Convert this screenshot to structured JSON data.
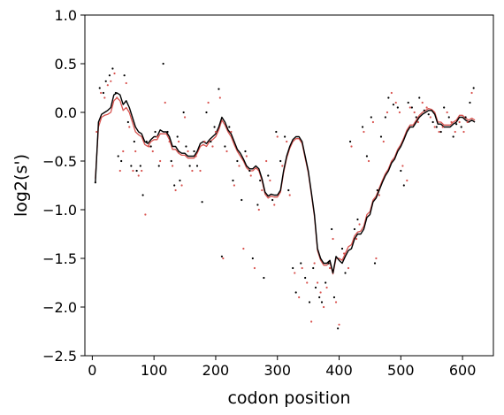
{
  "chart_data": {
    "type": "line",
    "title": "",
    "xlabel": "codon position",
    "ylabel": "log2(s')",
    "xlim": [
      -12,
      650
    ],
    "ylim": [
      -2.5,
      1.0
    ],
    "xticks": [
      0,
      100,
      200,
      300,
      400,
      500,
      600
    ],
    "yticks": [
      -2.5,
      -2.0,
      -1.5,
      -1.0,
      -0.5,
      0.0,
      0.5,
      1.0
    ],
    "grid": false,
    "colors": {
      "black_series": "#000000",
      "red_series": "#d9534f"
    },
    "series": [
      {
        "style": "line",
        "color": "#000000",
        "x": [
          5,
          10,
          15,
          20,
          25,
          30,
          35,
          40,
          45,
          50,
          55,
          60,
          65,
          70,
          75,
          80,
          85,
          90,
          95,
          100,
          105,
          110,
          115,
          120,
          125,
          130,
          135,
          140,
          145,
          150,
          155,
          160,
          165,
          170,
          175,
          180,
          185,
          190,
          195,
          200,
          205,
          210,
          215,
          220,
          225,
          230,
          235,
          240,
          245,
          250,
          255,
          260,
          265,
          270,
          275,
          280,
          285,
          290,
          295,
          300,
          305,
          310,
          315,
          320,
          325,
          330,
          335,
          340,
          345,
          350,
          355,
          360,
          365,
          370,
          375,
          380,
          385,
          390,
          395,
          400,
          405,
          410,
          415,
          420,
          425,
          430,
          435,
          440,
          445,
          450,
          455,
          460,
          465,
          470,
          475,
          480,
          485,
          490,
          495,
          500,
          505,
          510,
          515,
          520,
          525,
          530,
          535,
          540,
          545,
          550,
          555,
          560,
          565,
          570,
          575,
          580,
          585,
          590,
          595,
          600,
          605,
          610,
          615,
          620
        ],
        "y": [
          -0.72,
          -0.1,
          -0.02,
          0.0,
          0.02,
          0.05,
          0.18,
          0.2,
          0.18,
          0.08,
          0.12,
          0.05,
          -0.05,
          -0.15,
          -0.2,
          -0.22,
          -0.3,
          -0.32,
          -0.28,
          -0.25,
          -0.25,
          -0.18,
          -0.2,
          -0.2,
          -0.25,
          -0.35,
          -0.35,
          -0.4,
          -0.42,
          -0.42,
          -0.45,
          -0.45,
          -0.45,
          -0.4,
          -0.32,
          -0.3,
          -0.32,
          -0.28,
          -0.25,
          -0.22,
          -0.15,
          -0.05,
          -0.1,
          -0.18,
          -0.22,
          -0.3,
          -0.38,
          -0.42,
          -0.48,
          -0.55,
          -0.58,
          -0.58,
          -0.55,
          -0.58,
          -0.68,
          -0.82,
          -0.86,
          -0.84,
          -0.85,
          -0.85,
          -0.8,
          -0.6,
          -0.45,
          -0.35,
          -0.28,
          -0.25,
          -0.25,
          -0.3,
          -0.45,
          -0.6,
          -0.82,
          -1.05,
          -1.4,
          -1.5,
          -1.55,
          -1.55,
          -1.52,
          -1.65,
          -1.48,
          -1.52,
          -1.55,
          -1.48,
          -1.42,
          -1.4,
          -1.3,
          -1.25,
          -1.25,
          -1.2,
          -1.08,
          -1.05,
          -0.92,
          -0.88,
          -0.8,
          -0.72,
          -0.65,
          -0.6,
          -0.52,
          -0.48,
          -0.4,
          -0.35,
          -0.28,
          -0.2,
          -0.15,
          -0.15,
          -0.1,
          -0.05,
          -0.02,
          0.0,
          0.02,
          0.02,
          -0.02,
          -0.12,
          -0.12,
          -0.15,
          -0.15,
          -0.15,
          -0.12,
          -0.1,
          -0.05,
          -0.05,
          -0.08,
          -0.1,
          -0.08,
          -0.1
        ]
      },
      {
        "style": "line",
        "color": "#d9534f",
        "x": [
          5,
          10,
          15,
          20,
          25,
          30,
          35,
          40,
          45,
          50,
          55,
          60,
          65,
          70,
          75,
          80,
          85,
          90,
          95,
          100,
          105,
          110,
          115,
          120,
          125,
          130,
          135,
          140,
          145,
          150,
          155,
          160,
          165,
          170,
          175,
          180,
          185,
          190,
          195,
          200,
          205,
          210,
          215,
          220,
          225,
          230,
          235,
          240,
          245,
          250,
          255,
          260,
          265,
          270,
          275,
          280,
          285,
          290,
          295,
          300,
          305,
          310,
          315,
          320,
          325,
          330,
          335,
          340,
          345,
          350,
          355,
          360,
          365,
          370,
          375,
          380,
          385,
          390,
          395,
          400,
          405,
          410,
          415,
          420,
          425,
          430,
          435,
          440,
          445,
          450,
          455,
          460,
          465,
          470,
          475,
          480,
          485,
          490,
          495,
          500,
          505,
          510,
          515,
          520,
          525,
          530,
          535,
          540,
          545,
          550,
          555,
          560,
          565,
          570,
          575,
          580,
          585,
          590,
          595,
          600,
          605,
          610,
          615,
          620
        ],
        "y": [
          -0.68,
          -0.15,
          -0.05,
          -0.03,
          -0.02,
          0.0,
          0.12,
          0.15,
          0.12,
          0.02,
          0.05,
          0.0,
          -0.1,
          -0.2,
          -0.23,
          -0.25,
          -0.33,
          -0.35,
          -0.3,
          -0.28,
          -0.28,
          -0.22,
          -0.22,
          -0.22,
          -0.28,
          -0.38,
          -0.38,
          -0.42,
          -0.44,
          -0.44,
          -0.47,
          -0.47,
          -0.47,
          -0.42,
          -0.35,
          -0.33,
          -0.35,
          -0.3,
          -0.28,
          -0.25,
          -0.18,
          -0.08,
          -0.13,
          -0.2,
          -0.25,
          -0.33,
          -0.4,
          -0.45,
          -0.5,
          -0.57,
          -0.6,
          -0.6,
          -0.57,
          -0.6,
          -0.7,
          -0.84,
          -0.88,
          -0.86,
          -0.87,
          -0.87,
          -0.82,
          -0.62,
          -0.47,
          -0.37,
          -0.3,
          -0.27,
          -0.27,
          -0.32,
          -0.47,
          -0.62,
          -0.84,
          -1.07,
          -1.42,
          -1.52,
          -1.57,
          -1.57,
          -1.54,
          -1.66,
          -1.5,
          -1.5,
          -1.52,
          -1.45,
          -1.38,
          -1.36,
          -1.27,
          -1.23,
          -1.22,
          -1.17,
          -1.05,
          -1.02,
          -0.9,
          -0.86,
          -0.78,
          -0.7,
          -0.63,
          -0.58,
          -0.5,
          -0.46,
          -0.38,
          -0.33,
          -0.26,
          -0.18,
          -0.13,
          -0.13,
          -0.08,
          -0.03,
          0.0,
          0.02,
          0.04,
          0.03,
          0.0,
          -0.1,
          -0.1,
          -0.13,
          -0.13,
          -0.13,
          -0.1,
          -0.08,
          -0.03,
          -0.03,
          -0.06,
          -0.08,
          -0.06,
          -0.08
        ]
      },
      {
        "style": "scatter",
        "color": "#000000",
        "x": [
          5,
          12,
          18,
          22,
          28,
          33,
          38,
          42,
          47,
          52,
          58,
          63,
          68,
          72,
          78,
          82,
          88,
          95,
          102,
          108,
          115,
          122,
          128,
          133,
          138,
          142,
          148,
          152,
          158,
          165,
          170,
          178,
          185,
          192,
          198,
          205,
          210,
          215,
          222,
          228,
          235,
          242,
          248,
          255,
          260,
          268,
          272,
          278,
          285,
          292,
          298,
          305,
          312,
          318,
          325,
          330,
          338,
          345,
          352,
          358,
          362,
          368,
          372,
          378,
          383,
          388,
          392,
          398,
          405,
          410,
          418,
          425,
          430,
          438,
          445,
          452,
          458,
          462,
          468,
          475,
          480,
          488,
          495,
          500,
          505,
          512,
          518,
          525,
          530,
          538,
          545,
          552,
          558,
          565,
          570,
          578,
          585,
          590,
          598,
          605,
          612,
          618
        ],
        "y": [
          -0.72,
          0.25,
          0.2,
          0.32,
          0.38,
          0.45,
          0.2,
          -0.45,
          -0.5,
          0.38,
          -0.1,
          -0.55,
          -0.3,
          -0.6,
          -0.55,
          -0.85,
          -0.3,
          -0.35,
          -0.2,
          -0.55,
          0.5,
          -0.2,
          -0.5,
          -0.75,
          -0.25,
          -0.7,
          0.0,
          -0.35,
          -0.55,
          -0.4,
          -0.55,
          -0.92,
          0.0,
          -0.3,
          -0.15,
          0.24,
          -1.48,
          -0.35,
          -0.15,
          -0.7,
          -0.5,
          -0.9,
          -0.4,
          -0.6,
          -1.5,
          -0.95,
          -0.7,
          -1.7,
          -0.65,
          -0.9,
          -0.2,
          -0.5,
          -0.25,
          -0.8,
          -1.6,
          -1.85,
          -1.55,
          -1.7,
          -1.95,
          -1.6,
          -1.8,
          -1.9,
          -1.95,
          -1.75,
          -1.55,
          -1.2,
          -1.9,
          -2.22,
          -1.4,
          -1.65,
          -0.3,
          -1.2,
          -1.1,
          -0.15,
          -0.45,
          -0.05,
          -1.55,
          -0.8,
          -0.25,
          -0.05,
          0.15,
          0.08,
          0.05,
          -0.6,
          -0.75,
          0.1,
          0.05,
          -0.05,
          0.15,
          0.02,
          -0.02,
          -0.1,
          -0.15,
          -0.2,
          0.05,
          -0.05,
          -0.25,
          -0.12,
          -0.15,
          -0.05,
          0.1,
          0.25
        ]
      },
      {
        "style": "scatter",
        "color": "#d9534f",
        "x": [
          7,
          14,
          20,
          25,
          30,
          36,
          40,
          45,
          50,
          55,
          60,
          66,
          70,
          75,
          80,
          86,
          92,
          98,
          105,
          110,
          118,
          125,
          130,
          135,
          140,
          145,
          150,
          155,
          162,
          168,
          175,
          182,
          188,
          195,
          200,
          207,
          212,
          218,
          225,
          230,
          238,
          245,
          250,
          257,
          263,
          270,
          275,
          282,
          288,
          295,
          300,
          308,
          315,
          320,
          328,
          335,
          340,
          348,
          355,
          360,
          365,
          370,
          375,
          380,
          385,
          390,
          395,
          400,
          408,
          415,
          420,
          428,
          433,
          440,
          448,
          455,
          460,
          465,
          472,
          478,
          485,
          492,
          498,
          503,
          510,
          515,
          522,
          528,
          535,
          542,
          548,
          555,
          562,
          568,
          575,
          582,
          588,
          595,
          602,
          608,
          615
        ],
        "y": [
          -0.2,
          0.2,
          0.15,
          0.28,
          0.32,
          0.4,
          0.15,
          -0.6,
          -0.4,
          0.3,
          -0.15,
          -0.6,
          -0.4,
          -0.65,
          -0.6,
          -1.05,
          -0.35,
          -0.4,
          -0.25,
          -0.5,
          0.1,
          -0.3,
          -0.55,
          -0.8,
          -0.3,
          -0.75,
          -0.05,
          -0.4,
          -0.6,
          -0.45,
          -0.6,
          -0.3,
          0.1,
          -0.35,
          -0.2,
          0.15,
          -1.5,
          -0.4,
          -0.2,
          -0.75,
          -0.55,
          -1.4,
          -0.45,
          -0.65,
          -1.6,
          -1.0,
          -0.8,
          -0.5,
          -0.7,
          -0.95,
          -0.25,
          -0.55,
          -0.3,
          -0.85,
          -1.65,
          -1.9,
          -1.6,
          -1.75,
          -2.15,
          -1.55,
          -1.75,
          -1.85,
          -2.0,
          -1.8,
          -1.6,
          -1.3,
          -1.95,
          -2.18,
          -1.45,
          -1.6,
          -0.35,
          -1.3,
          -1.15,
          -0.2,
          -0.5,
          -0.1,
          -1.5,
          -0.85,
          -0.3,
          0.0,
          0.2,
          0.1,
          0.0,
          -0.55,
          -0.7,
          0.05,
          0.0,
          -0.1,
          0.1,
          0.05,
          -0.05,
          -0.15,
          -0.2,
          -0.15,
          0.0,
          -0.1,
          -0.2,
          -0.1,
          -0.2,
          -0.1,
          0.2
        ]
      }
    ]
  }
}
